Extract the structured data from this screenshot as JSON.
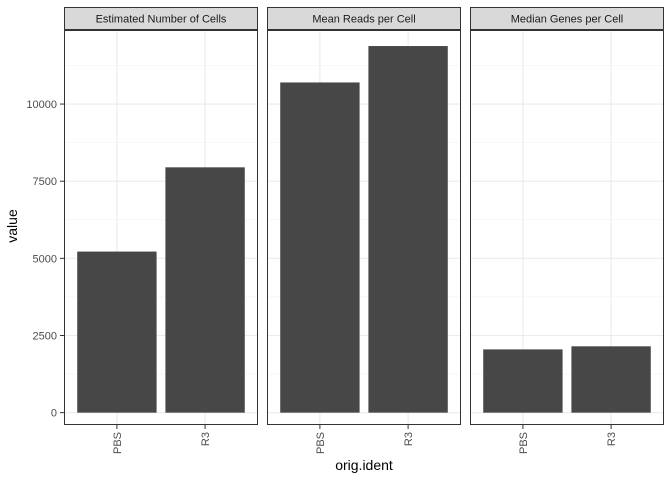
{
  "chart_data": {
    "type": "bar",
    "xlabel": "orig.ident",
    "ylabel": "value",
    "categories": [
      "PBS",
      "R3"
    ],
    "ylim": [
      -400,
      12400
    ],
    "yticks": [
      0,
      2500,
      5000,
      7500,
      10000
    ],
    "ytick_labels": [
      "0",
      "2500",
      "5000",
      "7500",
      "10000"
    ],
    "grid": true,
    "bar_color": "#474747",
    "panels": [
      {
        "title": "Estimated Number of Cells",
        "values": [
          5220,
          7950
        ]
      },
      {
        "title": "Mean Reads per Cell",
        "values": [
          10700,
          11880
        ]
      },
      {
        "title": "Median Genes per Cell",
        "values": [
          2050,
          2150
        ]
      }
    ]
  }
}
